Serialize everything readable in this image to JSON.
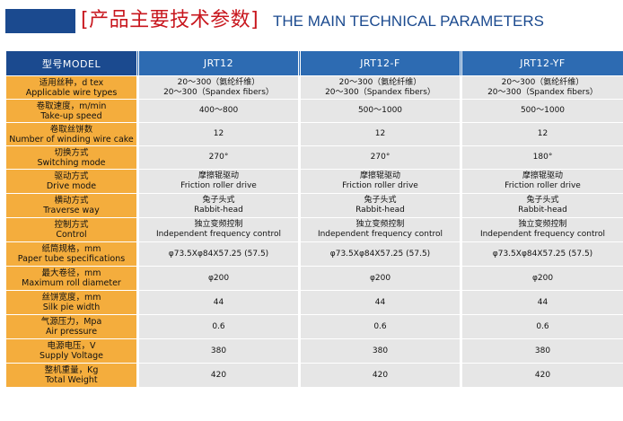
{
  "header": {
    "title_cn": "[产品主要技术参数]",
    "title_en": "THE MAIN TECHNICAL PARAMETERS"
  },
  "columns": {
    "model_label": "型号MODEL",
    "models": [
      "JRT12",
      "JRT12-F",
      "JRT12-YF"
    ]
  },
  "rows": [
    {
      "label_cn": "适用丝种，d tex",
      "label_en": "Applicable wire types",
      "values": [
        [
          "20～300（氨纶纤维）",
          "20～300（Spandex fibers）"
        ],
        [
          "20～300（氨纶纤维）",
          "20～300（Spandex fibers）"
        ],
        [
          "20～300（氨纶纤维）",
          "20～300（Spandex fibers）"
        ]
      ]
    },
    {
      "label_cn": "卷取速度，m/min",
      "label_en": "Take-up speed",
      "values": [
        [
          "400～800"
        ],
        [
          "500～1000"
        ],
        [
          "500～1000"
        ]
      ]
    },
    {
      "label_cn": "卷取丝饼数",
      "label_en": "Number of winding wire cake",
      "values": [
        [
          "12"
        ],
        [
          "12"
        ],
        [
          "12"
        ]
      ]
    },
    {
      "label_cn": "切换方式",
      "label_en": "Switching mode",
      "values": [
        [
          "270°"
        ],
        [
          "270°"
        ],
        [
          "180°"
        ]
      ]
    },
    {
      "label_cn": "驱动方式",
      "label_en": "Drive mode",
      "values": [
        [
          "摩擦辊驱动",
          "Friction roller drive"
        ],
        [
          "摩擦辊驱动",
          "Friction roller drive"
        ],
        [
          "摩擦辊驱动",
          "Friction roller drive"
        ]
      ]
    },
    {
      "label_cn": "横动方式",
      "label_en": "Traverse way",
      "values": [
        [
          "兔子头式",
          "Rabbit-head"
        ],
        [
          "兔子头式",
          "Rabbit-head"
        ],
        [
          "兔子头式",
          "Rabbit-head"
        ]
      ]
    },
    {
      "label_cn": "控制方式",
      "label_en": "Control",
      "values": [
        [
          "独立变频控制",
          "Independent frequency control"
        ],
        [
          "独立变频控制",
          "Independent frequency control"
        ],
        [
          "独立变频控制",
          "Independent frequency control"
        ]
      ]
    },
    {
      "label_cn": "纸筒规格，mm",
      "label_en": "Paper tube specifications",
      "values": [
        [
          "φ73.5Xφ84X57.25 (57.5)"
        ],
        [
          "φ73.5Xφ84X57.25 (57.5)"
        ],
        [
          "φ73.5Xφ84X57.25 (57.5)"
        ]
      ]
    },
    {
      "label_cn": "最大卷径，mm",
      "label_en": "Maximum roll diameter",
      "values": [
        [
          "φ200"
        ],
        [
          "φ200"
        ],
        [
          "φ200"
        ]
      ]
    },
    {
      "label_cn": "丝饼宽度，mm",
      "label_en": "Silk pie width",
      "values": [
        [
          "44"
        ],
        [
          "44"
        ],
        [
          "44"
        ]
      ]
    },
    {
      "label_cn": "气源压力，Mpa",
      "label_en": "Air pressure",
      "values": [
        [
          "0.6"
        ],
        [
          "0.6"
        ],
        [
          "0.6"
        ]
      ]
    },
    {
      "label_cn": "电源电压，V",
      "label_en": "Supply Voltage",
      "values": [
        [
          "380"
        ],
        [
          "380"
        ],
        [
          "380"
        ]
      ]
    },
    {
      "label_cn": "整机重量，Kg",
      "label_en": "Total Weight",
      "values": [
        [
          "420"
        ],
        [
          "420"
        ],
        [
          "420"
        ]
      ]
    }
  ]
}
